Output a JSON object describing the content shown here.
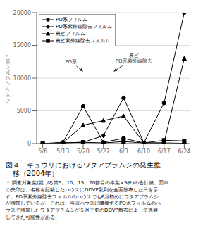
{
  "chart_data": {
    "type": "line",
    "title": "図４．キュウリにおけるワタアブラムシの発生推\n　移（2004年）",
    "ylabel": "ワタアブラムシ数＊",
    "x": [
      0,
      1,
      2,
      3,
      4,
      5,
      6,
      7
    ],
    "xlim": [
      -0.3,
      7.3
    ],
    "xticks": [
      {
        "value": 0,
        "label": "5/6"
      },
      {
        "value": 1,
        "label": "5/13"
      },
      {
        "value": 2,
        "label": "5/20"
      },
      {
        "value": 3,
        "label": "5/27"
      },
      {
        "value": 4,
        "label": "6/3"
      },
      {
        "value": 5,
        "label": "6/10"
      },
      {
        "value": 6,
        "label": "6/17"
      },
      {
        "value": 7,
        "label": "6/24"
      }
    ],
    "ylim": [
      0,
      20000
    ],
    "yticks": [
      0,
      5000,
      10000,
      15000,
      20000
    ],
    "grid": "y",
    "legend": "upper left",
    "series": [
      {
        "name": "PO系フィルム",
        "color": "#000000",
        "marker": "circle",
        "line_style": "solid",
        "values": [
          0,
          200,
          5700,
          200,
          800,
          100,
          6200,
          20000
        ]
      },
      {
        "name": "PO系紫外線除去フィルム",
        "color": "#000000",
        "marker": "diamond",
        "line_style": "solid",
        "values": [
          0,
          100,
          200,
          1200,
          7000,
          100,
          100,
          50
        ]
      },
      {
        "name": "農ビフィルム",
        "color": "#000000",
        "marker": "triangle",
        "line_style": "solid",
        "values": [
          0,
          100,
          2800,
          3500,
          4200,
          100,
          100,
          13000
        ]
      },
      {
        "name": "農ビ紫外線除去フィルム",
        "color": "#000000",
        "marker": "square",
        "line_style": "solid",
        "values": [
          0,
          100,
          200,
          100,
          300,
          100,
          500,
          400
        ]
      }
    ],
    "annotations": [
      {
        "text": "PO系",
        "x": 2,
        "y": 11000,
        "text_x": 1.4,
        "text_y": 12500
      },
      {
        "text": "農ビ\nPO系紫外線除去",
        "x": 3.5,
        "y": 11000,
        "text_x": 4.5,
        "text_y": 13000
      }
    ],
    "footnote": "＊ 調査対象葉(親づる第5、10、15、20節目の本葉×5株)の合計値。図中\nの矢印は、名称を記載したハウスにDDVP乳剤を全面散布した日を示\nす。PO系紫外線除去フィルムのハウスでも6月初めにワタアブラムシ\nが増加しているが、これは、当該ハウスに隣接するPO系フィルムのハ\nウスで増加したワタアブラムシが５月下旬のDDVP散布によって逃避\nしてきた可能性がある。"
  }
}
